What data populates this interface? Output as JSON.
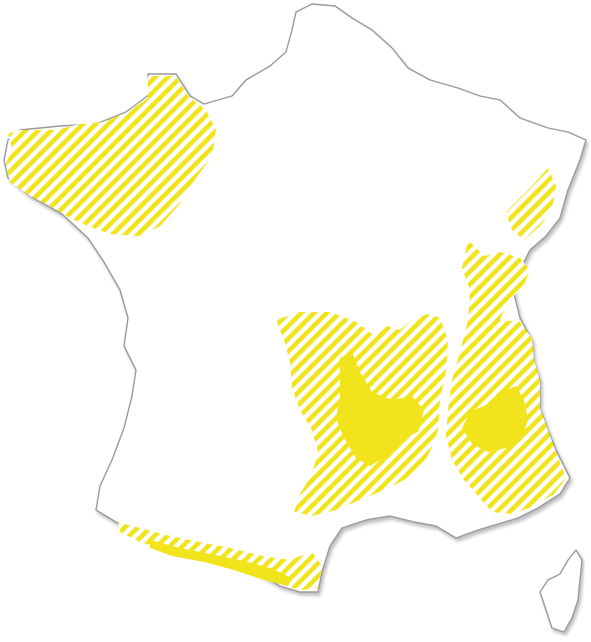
{
  "map": {
    "land_color": "#ffffff",
    "outline_color": "#9a9a9a",
    "shadow_color": "#c8c8c8",
    "zone_color": "#f2e41c",
    "zones": [
      {
        "id": "brittany",
        "style": "hatched"
      },
      {
        "id": "massif-central",
        "style": "hatched-with-solid-core"
      },
      {
        "id": "alps",
        "style": "hatched-with-solid-core"
      },
      {
        "id": "jura-vosges",
        "style": "hatched"
      },
      {
        "id": "pyrenees",
        "style": "hatched-with-solid-core"
      }
    ]
  }
}
